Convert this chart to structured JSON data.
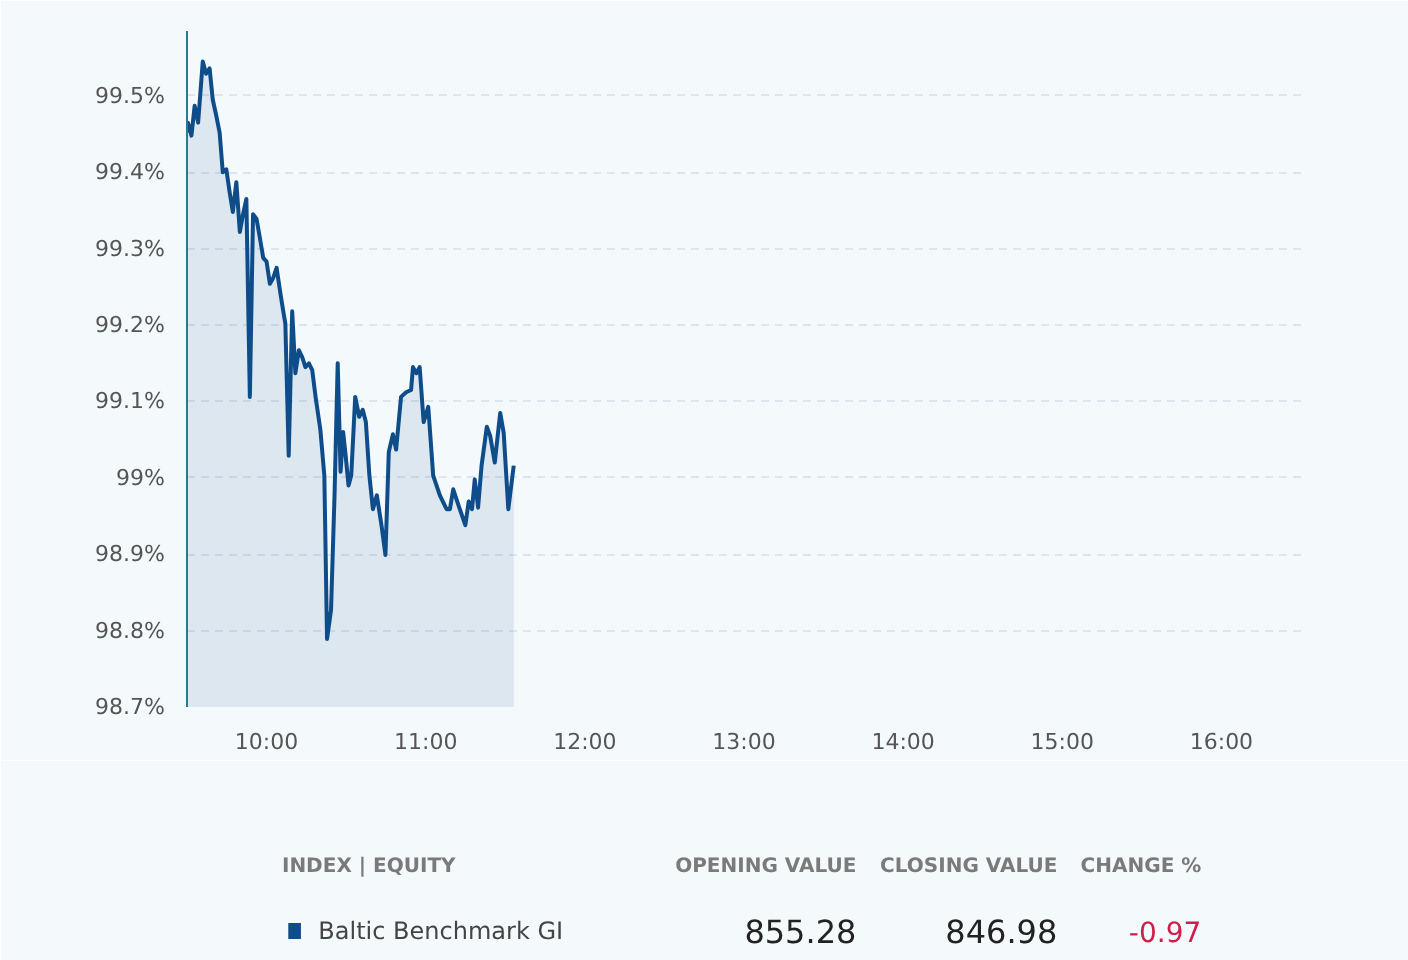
{
  "chart_data": {
    "type": "area",
    "x": [
      9.5,
      9.506,
      9.528,
      9.548,
      9.57,
      9.599,
      9.62,
      9.642,
      9.662,
      9.684,
      9.705,
      9.725,
      9.747,
      9.768,
      9.788,
      9.81,
      9.832,
      9.852,
      9.873,
      9.895,
      9.915,
      9.937,
      9.958,
      9.979,
      10.0,
      10.021,
      10.042,
      10.063,
      10.085,
      10.105,
      10.118,
      10.139,
      10.161,
      10.181,
      10.203,
      10.224,
      10.244,
      10.266,
      10.287,
      10.308,
      10.338,
      10.363,
      10.38,
      10.405,
      10.427,
      10.447,
      10.465,
      10.481,
      10.497,
      10.515,
      10.532,
      10.557,
      10.582,
      10.604,
      10.624,
      10.646,
      10.668,
      10.693,
      10.722,
      10.747,
      10.768,
      10.794,
      10.814,
      10.845,
      10.877,
      10.908,
      10.92,
      10.941,
      10.962,
      10.987,
      11.016,
      11.047,
      11.089,
      11.131,
      11.152,
      11.173,
      11.206,
      11.249,
      11.27,
      11.291,
      11.308,
      11.329,
      11.351,
      11.384,
      11.405,
      11.434,
      11.468,
      11.49,
      11.519,
      11.553
    ],
    "series": [
      {
        "name": "Baltic Benchmark GI",
        "color": "#0f4c8a",
        "values": [
          99.452,
          99.465,
          99.448,
          99.487,
          99.465,
          99.545,
          99.529,
          99.536,
          99.495,
          99.474,
          99.452,
          99.4,
          99.404,
          99.374,
          99.348,
          99.387,
          99.322,
          99.345,
          99.365,
          99.106,
          99.345,
          99.339,
          99.314,
          99.288,
          99.283,
          99.254,
          99.262,
          99.275,
          99.244,
          99.218,
          99.202,
          99.029,
          99.218,
          99.137,
          99.167,
          99.158,
          99.145,
          99.15,
          99.141,
          99.106,
          99.063,
          99.003,
          98.789,
          98.827,
          98.977,
          99.15,
          99.008,
          99.06,
          99.029,
          98.99,
          99.003,
          99.106,
          99.08,
          99.089,
          99.073,
          99.003,
          98.959,
          98.977,
          98.938,
          98.899,
          99.034,
          99.057,
          99.037,
          99.106,
          99.112,
          99.115,
          99.145,
          99.137,
          99.145,
          99.073,
          99.093,
          99.003,
          98.977,
          98.959,
          98.959,
          98.985,
          98.964,
          98.938,
          98.969,
          98.959,
          98.998,
          98.961,
          99.016,
          99.067,
          99.055,
          99.02,
          99.085,
          99.059,
          98.959,
          99.016
        ]
      }
    ],
    "xlim": [
      9.5,
      16.5
    ],
    "xticks": [
      {
        "value": 10,
        "label": "10:00"
      },
      {
        "value": 11,
        "label": "11:00"
      },
      {
        "value": 12,
        "label": "12:00"
      },
      {
        "value": 13,
        "label": "13:00"
      },
      {
        "value": 14,
        "label": "14:00"
      },
      {
        "value": 15,
        "label": "15:00"
      },
      {
        "value": 16,
        "label": "16:00"
      }
    ],
    "ylim": [
      98.7,
      99.585
    ],
    "yticks": [
      {
        "value": 98.7,
        "label": "98.7%"
      },
      {
        "value": 98.8,
        "label": "98.8%"
      },
      {
        "value": 98.9,
        "label": "98.9%"
      },
      {
        "value": 99,
        "label": "99%"
      },
      {
        "value": 99.1,
        "label": "99.1%"
      },
      {
        "value": 99.2,
        "label": "99.2%"
      },
      {
        "value": 99.3,
        "label": "99.3%"
      },
      {
        "value": 99.4,
        "label": "99.4%"
      },
      {
        "value": 99.5,
        "label": "99.5%"
      }
    ],
    "grid": "y",
    "legend": "bottom",
    "annotations": [
      "INDEX | EQUITY",
      "OPENING VALUE",
      "CLOSING VALUE",
      "CHANGE %",
      "855.28",
      "846.98",
      "-0.97"
    ]
  }
}
